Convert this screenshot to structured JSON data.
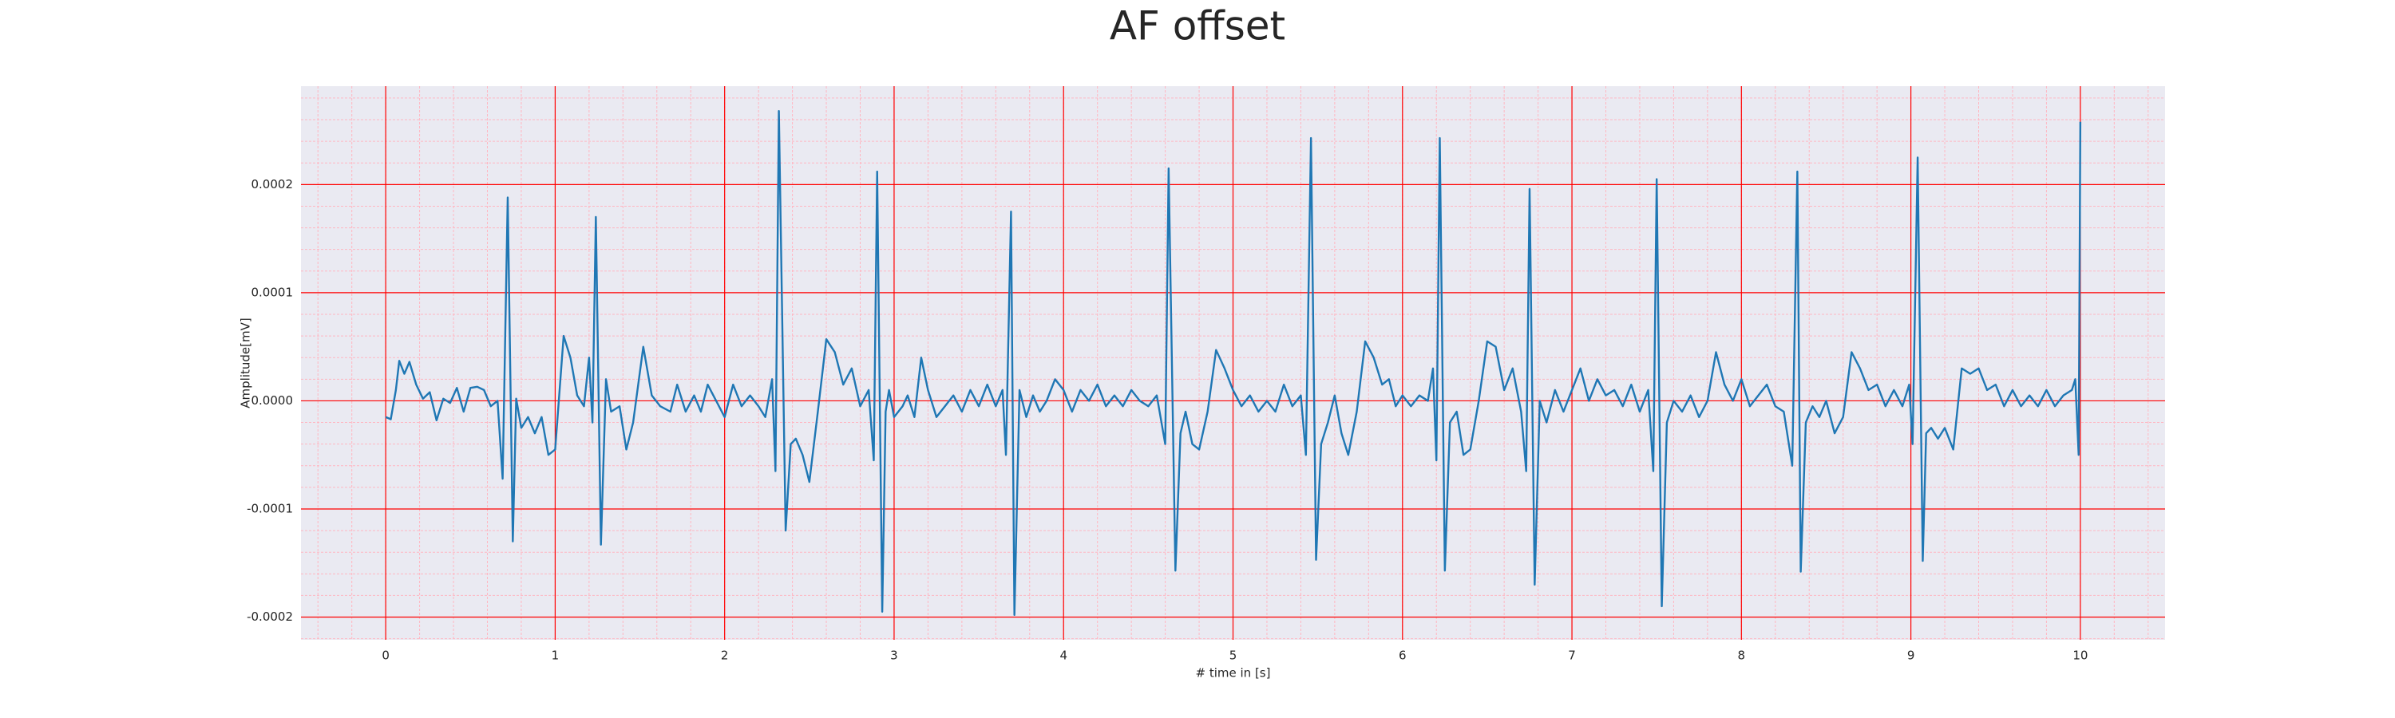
{
  "chart_data": {
    "type": "line",
    "title": "AF offset",
    "xlabel": "# time in [s]",
    "ylabel": "Amplitude[mV]",
    "x": [
      0,
      0.03,
      0.06,
      0.08,
      0.11,
      0.14,
      0.18,
      0.22,
      0.26,
      0.3,
      0.34,
      0.38,
      0.42,
      0.46,
      0.5,
      0.54,
      0.58,
      0.62,
      0.66,
      0.69,
      0.72,
      0.75,
      0.77,
      0.8,
      0.84,
      0.88,
      0.92,
      0.96,
      1,
      1.05,
      1.09,
      1.13,
      1.17,
      1.2,
      1.22,
      1.24,
      1.27,
      1.3,
      1.33,
      1.38,
      1.42,
      1.46,
      1.52,
      1.57,
      1.62,
      1.68,
      1.72,
      1.77,
      1.82,
      1.86,
      1.9,
      1.95,
      2,
      2.05,
      2.1,
      2.15,
      2.2,
      2.24,
      2.28,
      2.3,
      2.32,
      2.36,
      2.39,
      2.42,
      2.46,
      2.5,
      2.55,
      2.6,
      2.65,
      2.7,
      2.75,
      2.8,
      2.85,
      2.88,
      2.9,
      2.93,
      2.95,
      2.97,
      3,
      3.05,
      3.08,
      3.12,
      3.16,
      3.2,
      3.25,
      3.3,
      3.35,
      3.4,
      3.45,
      3.5,
      3.55,
      3.6,
      3.64,
      3.66,
      3.69,
      3.71,
      3.74,
      3.78,
      3.82,
      3.86,
      3.9,
      3.95,
      4,
      4.05,
      4.1,
      4.15,
      4.2,
      4.25,
      4.3,
      4.35,
      4.4,
      4.45,
      4.5,
      4.55,
      4.6,
      4.62,
      4.66,
      4.69,
      4.72,
      4.76,
      4.8,
      4.85,
      4.9,
      4.95,
      5,
      5.05,
      5.1,
      5.15,
      5.2,
      5.25,
      5.3,
      5.35,
      5.4,
      5.43,
      5.46,
      5.49,
      5.52,
      5.56,
      5.6,
      5.64,
      5.68,
      5.73,
      5.78,
      5.83,
      5.88,
      5.92,
      5.96,
      6,
      6.05,
      6.1,
      6.15,
      6.18,
      6.2,
      6.22,
      6.25,
      6.28,
      6.32,
      6.36,
      6.4,
      6.45,
      6.5,
      6.55,
      6.6,
      6.65,
      6.7,
      6.73,
      6.75,
      6.78,
      6.81,
      6.85,
      6.9,
      6.95,
      7,
      7.05,
      7.1,
      7.15,
      7.2,
      7.25,
      7.3,
      7.35,
      7.4,
      7.45,
      7.48,
      7.5,
      7.53,
      7.56,
      7.6,
      7.65,
      7.7,
      7.75,
      7.8,
      7.85,
      7.9,
      7.95,
      8,
      8.05,
      8.1,
      8.15,
      8.2,
      8.25,
      8.3,
      8.33,
      8.35,
      8.38,
      8.42,
      8.46,
      8.5,
      8.55,
      8.6,
      8.65,
      8.7,
      8.75,
      8.8,
      8.85,
      8.9,
      8.95,
      8.99,
      9.01,
      9.04,
      9.07,
      9.09,
      9.12,
      9.16,
      9.2,
      9.25,
      9.3,
      9.35,
      9.4,
      9.45,
      9.5,
      9.55,
      9.6,
      9.65,
      9.7,
      9.75,
      9.8,
      9.85,
      9.9,
      9.95,
      9.97,
      9.99,
      10
    ],
    "values": [
      -1.5e-05,
      -1.7e-05,
      1e-05,
      3.7e-05,
      2.5e-05,
      3.6e-05,
      1.5e-05,
      2e-06,
      8e-06,
      -1.8e-05,
      2e-06,
      -2e-06,
      1.2e-05,
      -1e-05,
      1.2e-05,
      1.3e-05,
      1e-05,
      -5e-06,
      0,
      -7.2e-05,
      0.000188,
      -0.00013,
      2e-06,
      -2.5e-05,
      -1.5e-05,
      -3e-05,
      -1.5e-05,
      -5e-05,
      -4.5e-05,
      6e-05,
      4e-05,
      5e-06,
      -5e-06,
      4e-05,
      -2e-05,
      0.00017,
      -0.000133,
      2e-05,
      -1e-05,
      -5e-06,
      -4.5e-05,
      -2e-05,
      5e-05,
      5e-06,
      -5e-06,
      -1e-05,
      1.5e-05,
      -1e-05,
      5e-06,
      -1e-05,
      1.5e-05,
      0,
      -1.5e-05,
      1.5e-05,
      -5e-06,
      5e-06,
      -5e-06,
      -1.5e-05,
      2e-05,
      -6.5e-05,
      0.000268,
      -0.00012,
      -4e-05,
      -3.5e-05,
      -5e-05,
      -7.5e-05,
      -1e-05,
      5.7e-05,
      4.5e-05,
      1.5e-05,
      3e-05,
      -5e-06,
      1e-05,
      -5.5e-05,
      0.000212,
      -0.000195,
      -1e-05,
      1e-05,
      -1.5e-05,
      -5e-06,
      5e-06,
      -1.5e-05,
      4e-05,
      1e-05,
      -1.5e-05,
      -5e-06,
      5e-06,
      -1e-05,
      1e-05,
      -5e-06,
      1.5e-05,
      -5e-06,
      1e-05,
      -5e-05,
      0.000175,
      -0.000198,
      1e-05,
      -1.5e-05,
      5e-06,
      -1e-05,
      0,
      2e-05,
      1e-05,
      -1e-05,
      1e-05,
      0,
      1.5e-05,
      -5e-06,
      5e-06,
      -5e-06,
      1e-05,
      0,
      -5e-06,
      5e-06,
      -4e-05,
      0.000215,
      -0.000157,
      -3e-05,
      -1e-05,
      -4e-05,
      -4.5e-05,
      -1e-05,
      4.7e-05,
      3e-05,
      1e-05,
      -5e-06,
      5e-06,
      -1e-05,
      0,
      -1e-05,
      1.5e-05,
      -5e-06,
      5e-06,
      -5e-05,
      0.000243,
      -0.000147,
      -4e-05,
      -2e-05,
      5e-06,
      -3e-05,
      -5e-05,
      -1e-05,
      5.5e-05,
      4e-05,
      1.5e-05,
      2e-05,
      -5e-06,
      5e-06,
      -5e-06,
      5e-06,
      0,
      3e-05,
      -5.5e-05,
      0.000243,
      -0.000157,
      -2e-05,
      -1e-05,
      -5e-05,
      -4.5e-05,
      0,
      5.5e-05,
      5e-05,
      1e-05,
      3e-05,
      -1e-05,
      -6.5e-05,
      0.000196,
      -0.00017,
      0,
      -2e-05,
      1e-05,
      -1e-05,
      1e-05,
      3e-05,
      0,
      2e-05,
      5e-06,
      1e-05,
      -5e-06,
      1.5e-05,
      -1e-05,
      1e-05,
      -6.5e-05,
      0.000205,
      -0.00019,
      -2e-05,
      0,
      -1e-05,
      5e-06,
      -1.5e-05,
      0,
      4.5e-05,
      1.5e-05,
      0,
      2e-05,
      -5e-06,
      5e-06,
      1.5e-05,
      -5e-06,
      -1e-05,
      -6e-05,
      0.000212,
      -0.000158,
      -2e-05,
      -5e-06,
      -1.5e-05,
      0,
      -3e-05,
      -1.5e-05,
      4.5e-05,
      3e-05,
      1e-05,
      1.5e-05,
      -5e-06,
      1e-05,
      -5e-06,
      1.5e-05,
      -4e-05,
      0.000225,
      -0.000148,
      -3e-05,
      -2.5e-05,
      -3.5e-05,
      -2.5e-05,
      -4.5e-05,
      3e-05,
      2.5e-05,
      3e-05,
      1e-05,
      1.5e-05,
      -5e-06,
      1e-05,
      -5e-06,
      5e-06,
      -5e-06,
      1e-05,
      -5e-06,
      5e-06,
      1e-05,
      2e-05,
      -5e-05,
      0.000258
    ],
    "color": "#1f77b4",
    "xlim": [
      -0.5,
      10.5
    ],
    "ylim": [
      -0.000221,
      0.000291
    ],
    "xticks": [
      0,
      1,
      2,
      3,
      4,
      5,
      6,
      7,
      8,
      9,
      10
    ],
    "yticks": [
      -0.0002,
      -0.0001,
      {
        "value": 0,
        "label": "0.0000"
      },
      0.0001,
      0.0002
    ],
    "grid": true,
    "grid_color": "#ff0000",
    "minor_grid": true,
    "minor_grid_color": "#ffb6c1",
    "xminor_step": 0.2,
    "yminor_step": 2e-05,
    "background": "#eaeaf2"
  }
}
